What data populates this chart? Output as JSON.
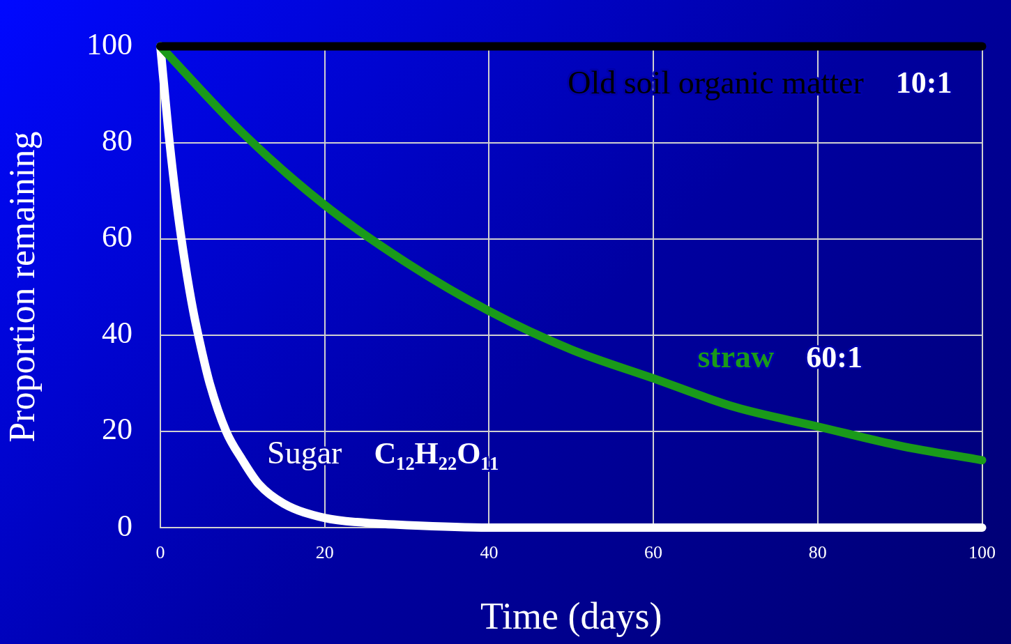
{
  "chart_data": {
    "type": "line",
    "xlabel": "Time (days)",
    "ylabel": "Proportion remaining",
    "xlim": [
      0,
      100
    ],
    "ylim": [
      0,
      100
    ],
    "xticks": [
      0,
      20,
      40,
      60,
      80,
      100
    ],
    "yticks": [
      0,
      20,
      40,
      60,
      80,
      100
    ],
    "grid": true,
    "marker": "none",
    "series": [
      {
        "name": "Old soil organic matter",
        "color": "#000000",
        "x": [
          0,
          100
        ],
        "values": [
          100,
          100
        ]
      },
      {
        "name": "straw",
        "color": "#1a9a1a",
        "x": [
          0,
          10,
          20,
          30,
          40,
          50,
          60,
          70,
          80,
          90,
          100
        ],
        "values": [
          100,
          82,
          67,
          55,
          45,
          37,
          31,
          25,
          21,
          17,
          14
        ]
      },
      {
        "name": "Sugar",
        "color": "#ffffff",
        "x": [
          0,
          1,
          2,
          3,
          4,
          5,
          6,
          8,
          10,
          12,
          15,
          20,
          25,
          30,
          40,
          100
        ],
        "values": [
          100,
          82,
          67,
          55,
          45,
          37,
          30,
          20,
          14,
          9,
          5,
          2,
          1,
          0.5,
          0,
          0
        ]
      }
    ],
    "annotations": [
      "10:1",
      "60:1",
      "C₁₂H₂₂O₁₁"
    ]
  }
}
